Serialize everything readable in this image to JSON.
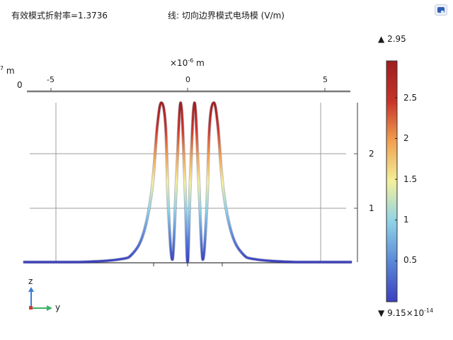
{
  "header": {
    "left_title": "有效模式折射率=1.3736",
    "center_title": "线: 切向边界模式电场模 (V/m)"
  },
  "colorbar": {
    "max_label": "2.95",
    "min_mantissa": "9.15",
    "min_base": "×10",
    "min_exponent": "-14",
    "ticks": [
      "2.5",
      "2",
      "1.5",
      "1",
      "0.5"
    ],
    "max_marker": "▲",
    "min_marker": "▼"
  },
  "axis_top": {
    "multiplier_base": "×10",
    "multiplier_exp": "-6",
    "unit": "m",
    "ticks": [
      "-5",
      "0",
      "5"
    ],
    "clipped_exp": "7",
    "clipped_unit": "m",
    "clipped_zero": "0"
  },
  "axis_right": {
    "ticks": [
      "2",
      "1"
    ]
  },
  "triad": {
    "z_label": "z",
    "y_label": "y"
  },
  "colors": {
    "colormap": [
      "#3b3fc0",
      "#5a88d8",
      "#8fd3e8",
      "#f3f09a",
      "#f2a04e",
      "#c8332a",
      "#9e1e1e"
    ]
  },
  "chart_data": {
    "type": "line",
    "x": [
      -6.0,
      -4.0,
      -2.5,
      -2.0,
      -1.6,
      -1.3,
      -1.1,
      -0.95,
      -0.8,
      -0.7,
      -0.55,
      -0.4,
      -0.25,
      -0.1,
      0.0,
      0.1,
      0.25,
      0.4,
      0.55,
      0.7,
      0.8,
      0.95,
      1.1,
      1.3,
      1.6,
      2.0,
      2.5,
      4.0,
      6.0
    ],
    "values": [
      0.0,
      0.0,
      0.05,
      0.16,
      0.55,
      1.35,
      2.55,
      2.95,
      2.5,
      1.0,
      0.05,
      1.6,
      2.95,
      1.5,
      0.0,
      1.5,
      2.95,
      1.6,
      0.05,
      1.0,
      2.5,
      2.95,
      2.55,
      1.35,
      0.55,
      0.16,
      0.05,
      0.0,
      0.0
    ],
    "xlim": [
      -6.0,
      6.0
    ],
    "ylim": [
      0,
      2.95
    ],
    "x_ticks": [
      -5,
      0,
      5
    ],
    "y_ticks": [
      1,
      2
    ],
    "grid": true
  }
}
